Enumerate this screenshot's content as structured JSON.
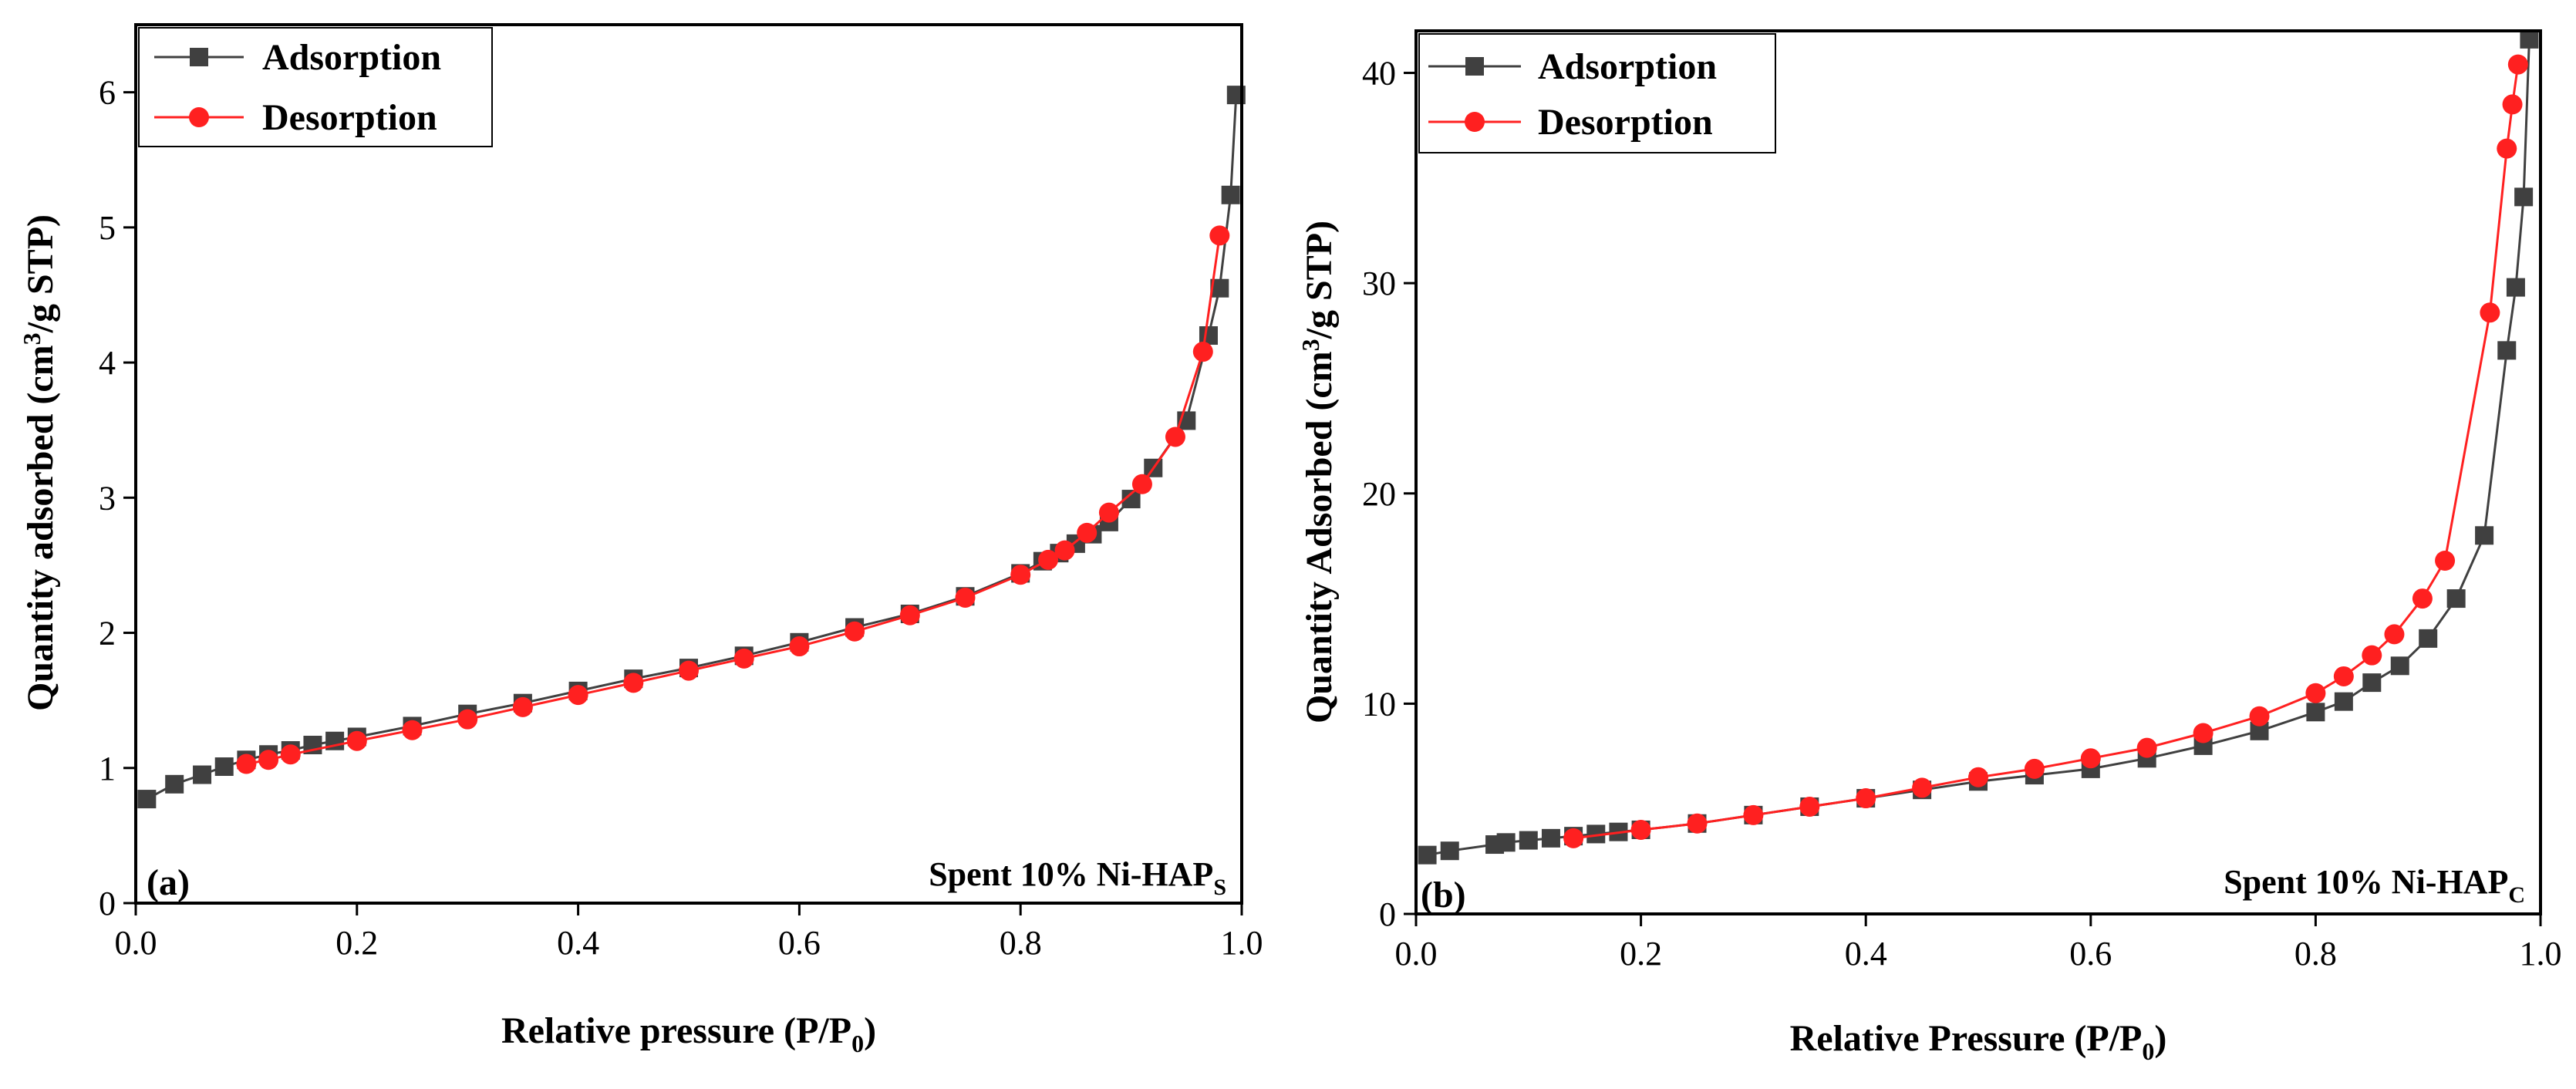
{
  "chart_data": [
    {
      "type": "line",
      "panel_label": "(a)",
      "annotation": {
        "prefix": "Spent 10% Ni-HAP",
        "subscript": "S"
      },
      "xlabel": {
        "prefix": "Relative pressure (P/P",
        "subscript": "0",
        "suffix": ")"
      },
      "ylabel": {
        "prefix": "Quantity adsorbed (cm",
        "superscript": "3",
        "suffix": "/g STP)"
      },
      "xlim": [
        0,
        1.0
      ],
      "ylim": [
        0,
        6.5
      ],
      "x_ticks": [
        "0.0",
        "0.2",
        "0.4",
        "0.6",
        "0.8",
        "1.0"
      ],
      "y_ticks": [
        "0",
        "1",
        "2",
        "3",
        "4",
        "5",
        "6"
      ],
      "legend": {
        "position": "top-left",
        "entries": [
          "Adsorption",
          "Desorption"
        ]
      },
      "series": [
        {
          "name": "Adsorption",
          "color": "#404040",
          "marker": "square",
          "x": [
            0.01,
            0.035,
            0.06,
            0.08,
            0.1,
            0.12,
            0.14,
            0.16,
            0.18,
            0.2,
            0.25,
            0.3,
            0.35,
            0.4,
            0.45,
            0.5,
            0.55,
            0.6,
            0.65,
            0.7,
            0.75,
            0.8,
            0.82,
            0.835,
            0.85,
            0.865,
            0.88,
            0.9,
            0.92,
            0.95,
            0.97,
            0.98,
            0.99,
            0.995
          ],
          "y": [
            0.77,
            0.88,
            0.95,
            1.01,
            1.06,
            1.1,
            1.13,
            1.17,
            1.2,
            1.23,
            1.31,
            1.4,
            1.48,
            1.57,
            1.66,
            1.74,
            1.83,
            1.93,
            2.04,
            2.14,
            2.27,
            2.44,
            2.53,
            2.59,
            2.66,
            2.73,
            2.82,
            2.99,
            3.22,
            3.57,
            4.2,
            4.55,
            5.24,
            5.98
          ]
        },
        {
          "name": "Desorption",
          "color": "#ff2020",
          "marker": "circle",
          "x": [
            0.1,
            0.12,
            0.14,
            0.2,
            0.25,
            0.3,
            0.35,
            0.4,
            0.45,
            0.5,
            0.55,
            0.6,
            0.65,
            0.7,
            0.75,
            0.8,
            0.825,
            0.84,
            0.86,
            0.88,
            0.91,
            0.94,
            0.965,
            0.98
          ],
          "y": [
            1.03,
            1.06,
            1.1,
            1.2,
            1.28,
            1.36,
            1.45,
            1.54,
            1.63,
            1.72,
            1.81,
            1.9,
            2.01,
            2.13,
            2.26,
            2.43,
            2.54,
            2.61,
            2.74,
            2.89,
            3.1,
            3.45,
            4.08,
            4.94
          ]
        }
      ]
    },
    {
      "type": "line",
      "panel_label": "(b)",
      "annotation": {
        "prefix": "Spent 10% Ni-HAP",
        "subscript": "C"
      },
      "xlabel": {
        "prefix": "Relative Pressure (P/P",
        "subscript": "0",
        "suffix": ")"
      },
      "ylabel": {
        "prefix": "Quantity Adsorbed (cm",
        "superscript": "3",
        "suffix": "/g STP)"
      },
      "xlim": [
        0,
        1.0
      ],
      "ylim": [
        0,
        42
      ],
      "x_ticks": [
        "0.0",
        "0.2",
        "0.4",
        "0.6",
        "0.8",
        "1.0"
      ],
      "y_ticks": [
        "0",
        "10",
        "20",
        "30",
        "40"
      ],
      "legend": {
        "position": "top-left",
        "entries": [
          "Adsorption",
          "Desorption"
        ]
      },
      "series": [
        {
          "name": "Adsorption",
          "color": "#404040",
          "marker": "square",
          "x": [
            0.01,
            0.03,
            0.07,
            0.08,
            0.1,
            0.12,
            0.14,
            0.16,
            0.18,
            0.2,
            0.25,
            0.3,
            0.35,
            0.4,
            0.45,
            0.5,
            0.55,
            0.6,
            0.65,
            0.7,
            0.75,
            0.8,
            0.825,
            0.85,
            0.875,
            0.9,
            0.925,
            0.95,
            0.97,
            0.978,
            0.985,
            0.99
          ],
          "y": [
            2.8,
            3.0,
            3.3,
            3.4,
            3.5,
            3.6,
            3.7,
            3.8,
            3.9,
            4.0,
            4.3,
            4.7,
            5.1,
            5.5,
            5.9,
            6.3,
            6.6,
            6.9,
            7.4,
            8.0,
            8.7,
            9.6,
            10.1,
            11.0,
            11.8,
            13.1,
            15.0,
            18.0,
            26.8,
            29.8,
            34.1,
            41.6
          ]
        },
        {
          "name": "Desorption",
          "color": "#ff2020",
          "marker": "circle",
          "x": [
            0.14,
            0.2,
            0.25,
            0.3,
            0.35,
            0.4,
            0.45,
            0.5,
            0.55,
            0.6,
            0.65,
            0.7,
            0.75,
            0.8,
            0.825,
            0.85,
            0.87,
            0.895,
            0.915,
            0.955,
            0.97,
            0.975,
            0.98
          ],
          "y": [
            3.6,
            4.0,
            4.3,
            4.7,
            5.1,
            5.5,
            6.0,
            6.5,
            6.9,
            7.4,
            7.9,
            8.6,
            9.4,
            10.5,
            11.3,
            12.3,
            13.3,
            15.0,
            16.8,
            28.6,
            36.4,
            38.5,
            40.4
          ]
        }
      ]
    }
  ]
}
